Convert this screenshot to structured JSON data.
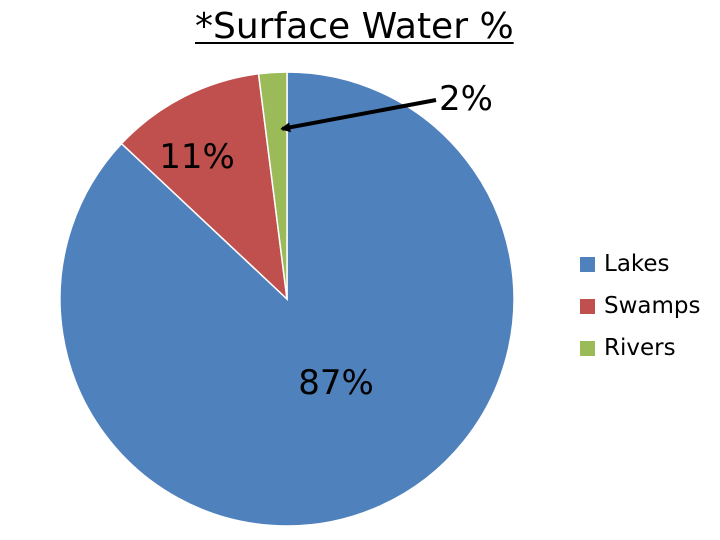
{
  "chart_data": {
    "type": "pie",
    "title": "*Surface Water %",
    "categories": [
      "Lakes",
      "Swamps",
      "Rivers"
    ],
    "values": [
      87,
      11,
      2
    ],
    "data_labels": [
      "87%",
      "11%",
      "2%"
    ],
    "colors": [
      "#4f81bd",
      "#c0504d",
      "#9bbb59"
    ],
    "legend_position": "right",
    "start_angle": "12 o'clock, clockwise",
    "annotation": "arrow from the 2% label to the Rivers slice"
  }
}
